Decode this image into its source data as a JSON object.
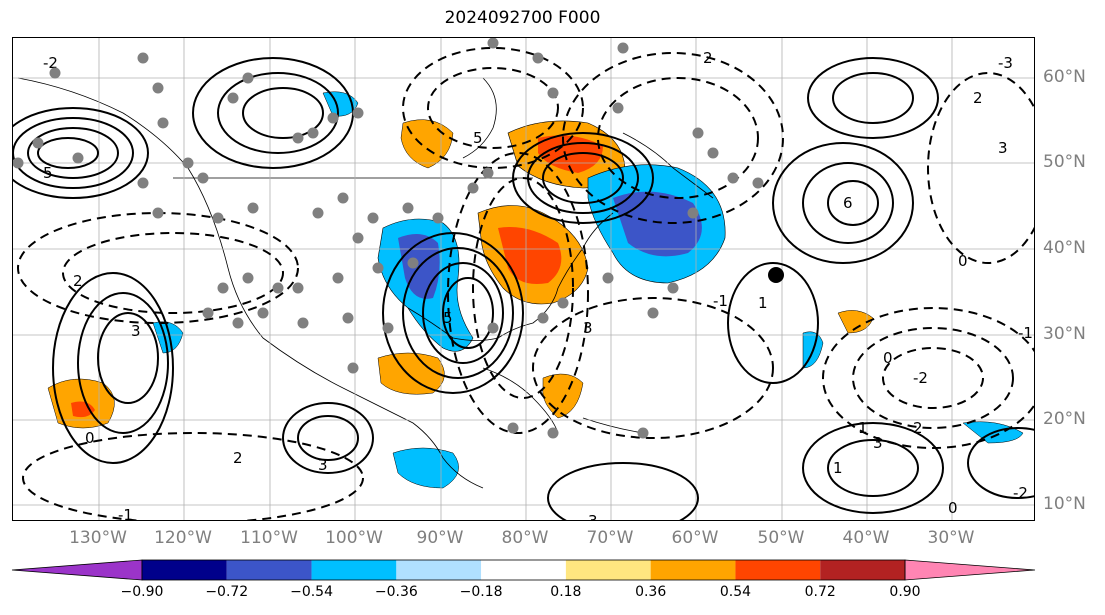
{
  "title": "2024092700 F000",
  "map": {
    "lon_labels": [
      "130°W",
      "120°W",
      "110°W",
      "100°W",
      "90°W",
      "80°W",
      "70°W",
      "60°W",
      "50°W",
      "40°W",
      "30°W"
    ],
    "lat_labels": [
      "60°N",
      "50°N",
      "40°N",
      "30°N",
      "20°N",
      "10°N"
    ],
    "contour_labels": [
      "5",
      "5",
      "1",
      "3",
      "2",
      "0",
      "-1",
      "3",
      "5",
      "6",
      "3",
      "2",
      "1",
      "-2",
      "-1",
      "-3",
      "0",
      "2",
      "3",
      "0",
      "-2",
      "3",
      "2",
      "3",
      "2",
      "-1",
      "1",
      "0",
      "-2"
    ],
    "storm_marker": "black-dot"
  },
  "colorbar": {
    "ticks": [
      "−0.90",
      "−0.72",
      "−0.54",
      "−0.36",
      "−0.18",
      "0.18",
      "0.36",
      "0.54",
      "0.72",
      "0.90"
    ],
    "colors": [
      "#9b34c9",
      "#00008b",
      "#3c55c8",
      "#00bfff",
      "#b0e0ff",
      "#ffffff",
      "#ffe680",
      "#ffa500",
      "#ff4500",
      "#b22222",
      "#ff85b3"
    ]
  }
}
